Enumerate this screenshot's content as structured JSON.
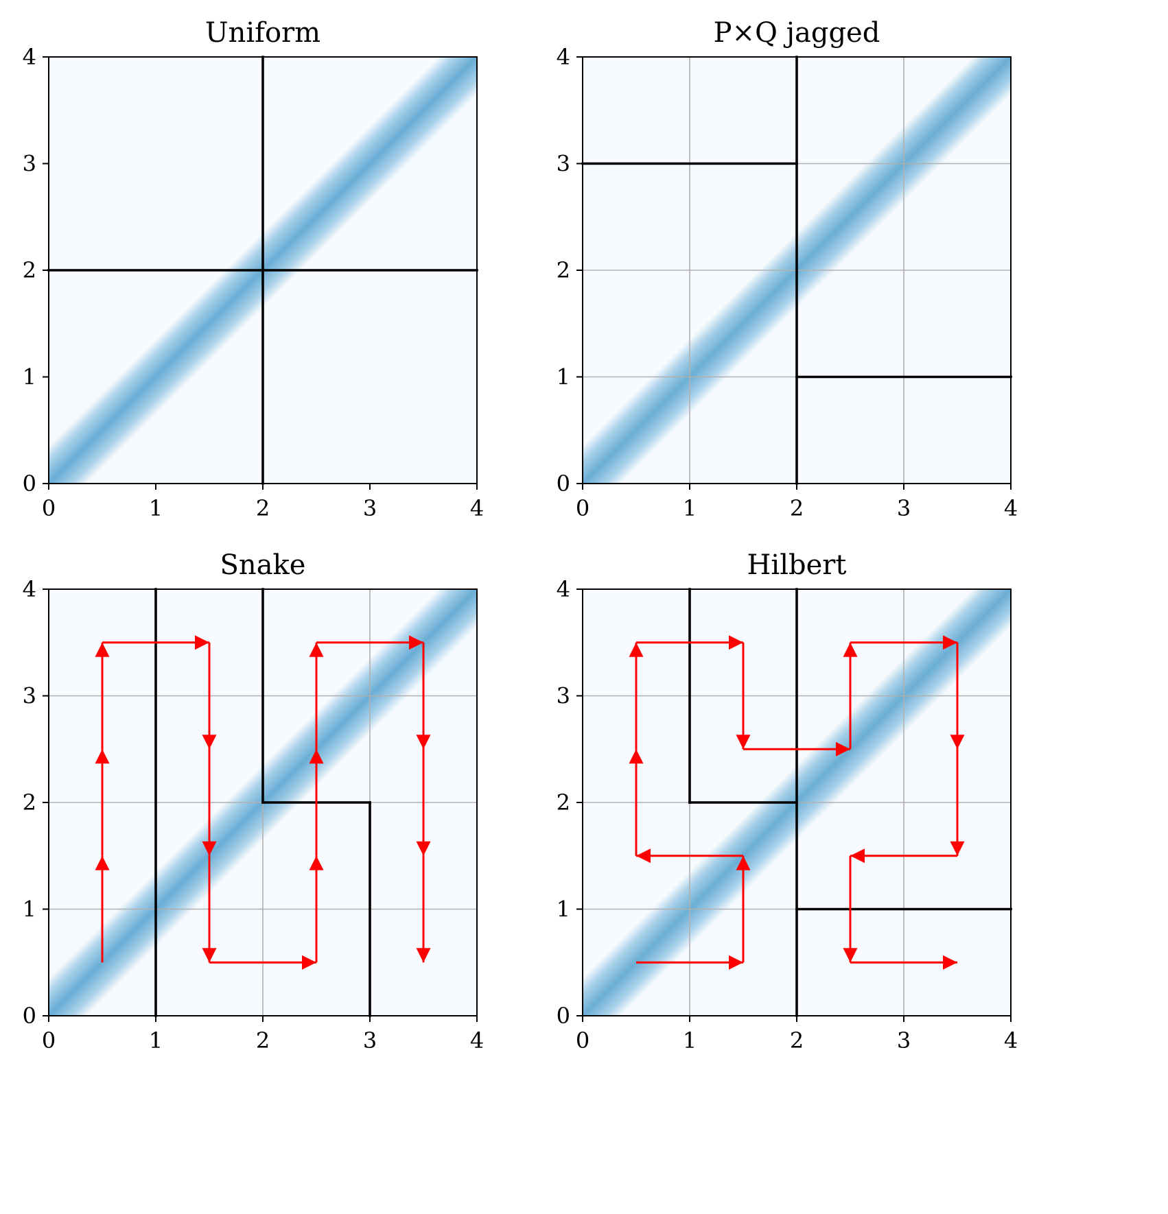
{
  "figure": {
    "colors": {
      "background": "#f7fbff",
      "band": "#6aaed6",
      "frame": "#000000",
      "grid": "#b0b0b0",
      "partition": "#000000",
      "path": "#ff0000"
    }
  },
  "chart_data": [
    {
      "type": "heatmap",
      "title": "Uniform",
      "xlim": [
        0,
        4
      ],
      "ylim": [
        0,
        4
      ],
      "xticks": [
        "0",
        "1",
        "2",
        "3",
        "4"
      ],
      "yticks": [
        "0",
        "1",
        "2",
        "3",
        "4"
      ],
      "grid": false,
      "heatmap": "diagonal band from (0,4) to (4,0)",
      "partition_lines": [
        [
          [
            2,
            0
          ],
          [
            2,
            4
          ]
        ],
        [
          [
            0,
            2
          ],
          [
            4,
            2
          ]
        ]
      ],
      "path": []
    },
    {
      "type": "heatmap",
      "title": "P×Q jagged",
      "xlim": [
        0,
        4
      ],
      "ylim": [
        0,
        4
      ],
      "xticks": [
        "0",
        "1",
        "2",
        "3",
        "4"
      ],
      "yticks": [
        "0",
        "1",
        "2",
        "3",
        "4"
      ],
      "grid": true,
      "heatmap": "diagonal band from (0,4) to (4,0)",
      "partition_lines": [
        [
          [
            2,
            0
          ],
          [
            2,
            4
          ]
        ],
        [
          [
            0,
            3
          ],
          [
            2,
            3
          ]
        ],
        [
          [
            2,
            1
          ],
          [
            4,
            1
          ]
        ]
      ],
      "path": []
    },
    {
      "type": "heatmap",
      "title": "Snake",
      "xlim": [
        0,
        4
      ],
      "ylim": [
        0,
        4
      ],
      "xticks": [
        "0",
        "1",
        "2",
        "3",
        "4"
      ],
      "yticks": [
        "0",
        "1",
        "2",
        "3",
        "4"
      ],
      "grid": true,
      "heatmap": "diagonal band from (0,4) to (4,0)",
      "partition_lines": [
        [
          [
            1,
            0
          ],
          [
            1,
            4
          ]
        ],
        [
          [
            2,
            2
          ],
          [
            2,
            4
          ]
        ],
        [
          [
            2,
            2
          ],
          [
            3,
            2
          ]
        ],
        [
          [
            3,
            0
          ],
          [
            3,
            2
          ]
        ]
      ],
      "path": [
        [
          0.5,
          0.5
        ],
        [
          0.5,
          1.5
        ],
        [
          0.5,
          2.5
        ],
        [
          0.5,
          3.5
        ],
        [
          1.5,
          3.5
        ],
        [
          1.5,
          2.5
        ],
        [
          1.5,
          1.5
        ],
        [
          1.5,
          0.5
        ],
        [
          2.5,
          0.5
        ],
        [
          2.5,
          1.5
        ],
        [
          2.5,
          2.5
        ],
        [
          2.5,
          3.5
        ],
        [
          3.5,
          3.5
        ],
        [
          3.5,
          2.5
        ],
        [
          3.5,
          1.5
        ],
        [
          3.5,
          0.5
        ]
      ]
    },
    {
      "type": "heatmap",
      "title": "Hilbert",
      "xlim": [
        0,
        4
      ],
      "ylim": [
        0,
        4
      ],
      "xticks": [
        "0",
        "1",
        "2",
        "3",
        "4"
      ],
      "yticks": [
        "0",
        "1",
        "2",
        "3",
        "4"
      ],
      "grid": true,
      "heatmap": "diagonal band from (0,4) to (4,0)",
      "partition_lines": [
        [
          [
            1,
            2
          ],
          [
            1,
            4
          ]
        ],
        [
          [
            1,
            2
          ],
          [
            2,
            2
          ]
        ],
        [
          [
            2,
            0
          ],
          [
            2,
            4
          ]
        ],
        [
          [
            2,
            1
          ],
          [
            4,
            1
          ]
        ]
      ],
      "path": [
        [
          0.5,
          0.5
        ],
        [
          1.5,
          0.5
        ],
        [
          1.5,
          1.5
        ],
        [
          0.5,
          1.5
        ],
        [
          0.5,
          2.5
        ],
        [
          0.5,
          3.5
        ],
        [
          1.5,
          3.5
        ],
        [
          1.5,
          2.5
        ],
        [
          2.5,
          2.5
        ],
        [
          2.5,
          3.5
        ],
        [
          3.5,
          3.5
        ],
        [
          3.5,
          2.5
        ],
        [
          3.5,
          1.5
        ],
        [
          2.5,
          1.5
        ],
        [
          2.5,
          0.5
        ],
        [
          3.5,
          0.5
        ]
      ]
    }
  ]
}
